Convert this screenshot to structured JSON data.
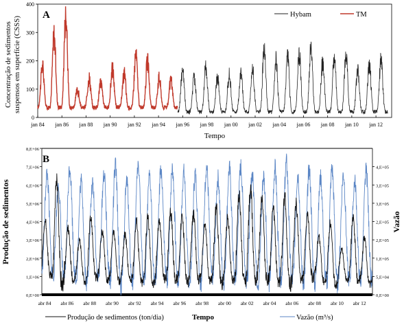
{
  "chart_data": [
    {
      "type": "line",
      "panel_label": "A",
      "xlabel": "Tempo",
      "ylabel_lines": [
        "Concentração de sedimentos",
        "suspensos em superfície (CSSS)"
      ],
      "ylim": [
        0,
        400
      ],
      "yticks": [
        "0",
        "100",
        "200",
        "300",
        "400"
      ],
      "xticks": [
        "jan 84",
        "jan 86",
        "jan 88",
        "jan 90",
        "jan 92",
        "jan 94",
        "jan 96",
        "jan 98",
        "jan 00",
        "jan 02",
        "jan 04",
        "jan 06",
        "jan 08",
        "jan 10",
        "jan 12"
      ],
      "xrange_years": [
        1984,
        2013.3
      ],
      "legend_position": "top-right",
      "grid": false,
      "series": [
        {
          "name": "Hybam",
          "color": "#222222",
          "years": [
            1995.6,
            2013.0
          ],
          "peaks": [
            165,
            140,
            175,
            145,
            150,
            155,
            170,
            245,
            200,
            205,
            225,
            245,
            195,
            210,
            220,
            165,
            185,
            200
          ],
          "base": 20
        },
        {
          "name": "TM",
          "color": "#c0392b",
          "years": [
            1984.0,
            1995.6
          ],
          "peaks": [
            180,
            290,
            360,
            95,
            140,
            125,
            170,
            155,
            220,
            195,
            140,
            130
          ],
          "base": 35
        }
      ]
    },
    {
      "type": "line",
      "panel_label": "B",
      "xlabel": "Tempo",
      "ylabel_left": "Produção de sedimentos",
      "ylabel_right": "Vazão",
      "yticks_left": [
        "0,E+00",
        "1,E+06",
        "2,E+06",
        "3,E+06",
        "4,E+06",
        "5,E+06",
        "6,E+06",
        "7,E+06",
        "8,E+06"
      ],
      "yticks_right": [
        "0,E+00",
        "5,E+04",
        "1,E+05",
        "2,E+05",
        "2,E+05",
        "3,E+05",
        "3,E+05",
        "4,E+05"
      ],
      "ylim_left": [
        0,
        8000000
      ],
      "ylim_right": [
        0,
        400000
      ],
      "xticks": [
        "abr 84",
        "abr 86",
        "abr 88",
        "abr 90",
        "abr 92",
        "abr 94",
        "abr 96",
        "abr 98",
        "abr 00",
        "abr 02",
        "abr 04",
        "abr 06",
        "abr 08",
        "abr 10",
        "abr 12"
      ],
      "xrange_years": [
        1984,
        2013.4
      ],
      "grid": false,
      "series": [
        {
          "name": "Produção de sedimentos (ton/dia)",
          "color": "#111111",
          "axis": "left",
          "peaks": [
            4000000,
            6400000,
            3600000,
            3000000,
            4200000,
            3500000,
            3400000,
            3300000,
            4000000,
            4200000,
            4100000,
            4500000,
            4300000,
            4400000,
            3900000,
            4800000,
            4200000,
            5500000,
            5800000,
            5300000,
            4700000,
            5400000,
            5000000,
            4300000,
            3200000,
            3900000,
            2500000,
            4200000,
            3100000
          ],
          "troughs": [
            1000000,
            600000,
            800000,
            700000,
            900000,
            800000,
            750000,
            800000,
            700000,
            600000,
            900000,
            800000,
            700000,
            850000,
            750000,
            600000,
            800000,
            700000,
            900000,
            800000,
            700000,
            600000,
            800000,
            900000,
            700000,
            600000,
            800000,
            700000,
            600000
          ]
        },
        {
          "name": "Vazão (m³/s)",
          "color": "#5b86c5",
          "axis": "right",
          "peaks": [
            330000,
            300000,
            350000,
            310000,
            300000,
            330000,
            350000,
            310000,
            360000,
            320000,
            340000,
            345000,
            335000,
            330000,
            350000,
            320000,
            345000,
            350000,
            330000,
            325000,
            345000,
            360000,
            330000,
            340000,
            320000,
            345000,
            330000,
            310000,
            335000
          ],
          "troughs": [
            60000,
            40000,
            50000,
            30000,
            45000,
            50000,
            25000,
            35000,
            40000,
            30000,
            45000,
            35000,
            40000,
            30000,
            50000,
            35000,
            45000,
            40000,
            35000,
            30000,
            45000,
            40000,
            35000,
            30000,
            40000,
            30000,
            45000,
            35000,
            40000
          ]
        }
      ]
    }
  ]
}
